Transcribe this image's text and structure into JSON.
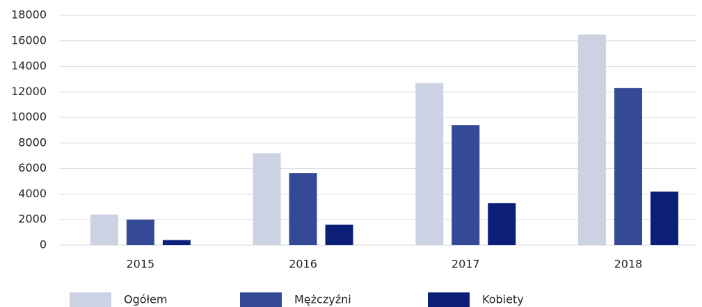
{
  "chart_data": {
    "type": "bar",
    "categories": [
      "2015",
      "2016",
      "2017",
      "2018"
    ],
    "series": [
      {
        "name": "Ogółem",
        "color": "#cdd1e4",
        "values": [
          2400,
          7200,
          12700,
          16500
        ]
      },
      {
        "name": "Mężczyźni",
        "color": "#354a96",
        "values": [
          2000,
          5650,
          9400,
          12300
        ]
      },
      {
        "name": "Kobiety",
        "color": "#0c1f78",
        "values": [
          400,
          1600,
          3300,
          4200
        ]
      }
    ],
    "ylim": [
      0,
      18000
    ],
    "yticks": [
      0,
      2000,
      4000,
      6000,
      8000,
      10000,
      12000,
      14000,
      16000,
      18000
    ],
    "grid": true,
    "legend": "bottom"
  }
}
